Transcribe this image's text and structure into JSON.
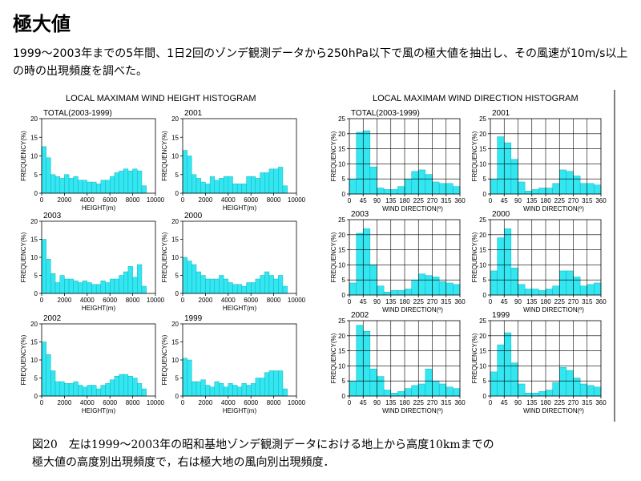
{
  "page": {
    "title": "極大値",
    "intro": "1999～2003年までの5年間、1日2回のゾンデ観測データから250hPa以下で風の極大値を抽出し、その風速が10m/s以上の時の出現頻度を調べた。",
    "caption_line1": "図20　左は1999～2003年の昭和基地ゾンデ観測データにおける地上から高度10kmまでの",
    "caption_line2": "極大値の高度別出現頻度で，右は極大地の風向別出現頻度．"
  },
  "figures": {
    "height_title": "LOCAL MAXIMAM WIND HEIGHT HISTOGRAM",
    "direction_title": "LOCAL MAXIMAM WIND DIRECTION HISTOGRAM"
  },
  "chart_data": [
    {
      "type": "bar",
      "group": "height",
      "title": "TOTAL(2003-1999)",
      "xlabel": "HEIGHT(m)",
      "ylabel": "FREQUENCY(%)",
      "xlim": [
        0,
        10000
      ],
      "ylim": [
        0,
        20
      ],
      "xticks": [
        0,
        2000,
        4000,
        6000,
        8000,
        10000
      ],
      "yticks": [
        0,
        5,
        10,
        15,
        20
      ],
      "bin_width": 400,
      "values": [
        12.5,
        9.5,
        5,
        4.5,
        4,
        5,
        4,
        4.5,
        3.5,
        3.5,
        3,
        3,
        2.5,
        3.5,
        3.5,
        4.5,
        5.5,
        6,
        6.5,
        6,
        6.5,
        6,
        2
      ]
    },
    {
      "type": "bar",
      "group": "height",
      "title": "2001",
      "xlabel": "HEIGHT(m)",
      "ylabel": "FREQUENCY(%)",
      "xlim": [
        0,
        10000
      ],
      "ylim": [
        0,
        20
      ],
      "xticks": [
        0,
        2000,
        4000,
        6000,
        8000,
        10000
      ],
      "yticks": [
        0,
        5,
        10,
        15,
        20
      ],
      "bin_width": 400,
      "values": [
        11.5,
        10,
        5,
        4,
        3,
        2.5,
        4.5,
        3.5,
        4,
        4.5,
        4.5,
        2.5,
        2.5,
        2.5,
        4.5,
        4.5,
        4,
        5.5,
        5.5,
        6.5,
        6.5,
        7,
        2
      ]
    },
    {
      "type": "bar",
      "group": "height",
      "title": "2003",
      "xlabel": "HEIGHT(m)",
      "ylabel": "FREQUENCY(%)",
      "xlim": [
        0,
        10000
      ],
      "ylim": [
        0,
        20
      ],
      "xticks": [
        0,
        2000,
        4000,
        6000,
        8000,
        10000
      ],
      "yticks": [
        0,
        5,
        10,
        15,
        20
      ],
      "bin_width": 400,
      "values": [
        15,
        9.5,
        5.5,
        3,
        5,
        4,
        4,
        3.5,
        3,
        3.5,
        3,
        2.5,
        2.5,
        3.5,
        3,
        4,
        4,
        5,
        6,
        7.5,
        4.5,
        8,
        2
      ]
    },
    {
      "type": "bar",
      "group": "height",
      "title": "2000",
      "xlabel": "HEIGHT(m)",
      "ylabel": "FREQUENCY(%)",
      "xlim": [
        0,
        10000
      ],
      "ylim": [
        0,
        20
      ],
      "xticks": [
        0,
        2000,
        4000,
        6000,
        8000,
        10000
      ],
      "yticks": [
        0,
        5,
        10,
        15,
        20
      ],
      "bin_width": 400,
      "values": [
        10,
        9,
        8,
        6,
        5,
        4,
        4,
        4,
        5,
        4,
        3,
        2.5,
        2.5,
        2,
        3,
        3,
        4,
        5,
        6,
        5,
        4,
        5,
        2
      ]
    },
    {
      "type": "bar",
      "group": "height",
      "title": "2002",
      "xlabel": "HEIGHT(m)",
      "ylabel": "FREQUENCY(%)",
      "xlim": [
        0,
        10000
      ],
      "ylim": [
        0,
        20
      ],
      "xticks": [
        0,
        2000,
        4000,
        6000,
        8000,
        10000
      ],
      "yticks": [
        0,
        5,
        10,
        15,
        20
      ],
      "bin_width": 400,
      "values": [
        15,
        11.5,
        7,
        4,
        4,
        3.5,
        3.5,
        4,
        3,
        2.5,
        3,
        3,
        2,
        3,
        3.5,
        4.5,
        5.5,
        6,
        6,
        5.5,
        5,
        3.5,
        2
      ]
    },
    {
      "type": "bar",
      "group": "height",
      "title": "1999",
      "xlabel": "HEIGHT(m)",
      "ylabel": "FREQUENCY(%)",
      "xlim": [
        0,
        10000
      ],
      "ylim": [
        0,
        20
      ],
      "xticks": [
        0,
        2000,
        4000,
        6000,
        8000,
        10000
      ],
      "yticks": [
        0,
        5,
        10,
        15,
        20
      ],
      "bin_width": 400,
      "values": [
        10.5,
        10,
        4,
        4,
        4.5,
        3,
        2.5,
        4,
        3.5,
        2.5,
        3.5,
        3,
        2.5,
        3.5,
        3,
        3.5,
        5,
        5,
        6.5,
        7,
        7,
        7,
        2
      ]
    },
    {
      "type": "bar",
      "group": "direction",
      "title": "TOTAL(2003-1999)",
      "xlabel": "WIND DIRECTION(º)",
      "ylabel": "FREQUENCY(%)",
      "xlim": [
        0,
        360
      ],
      "ylim": [
        0,
        25
      ],
      "xticks": [
        0,
        45,
        90,
        135,
        180,
        225,
        270,
        315,
        360
      ],
      "yticks": [
        0,
        5,
        10,
        15,
        20,
        25
      ],
      "bin_width": 22.5,
      "values": [
        5,
        20.5,
        21,
        9,
        2,
        1.5,
        1.5,
        2.5,
        5,
        7.5,
        8,
        6.5,
        4,
        3.5,
        3.5,
        2.5
      ]
    },
    {
      "type": "bar",
      "group": "direction",
      "title": "2001",
      "xlabel": "WIND DIRECTION(º)",
      "ylabel": "FREQUENCY(%)",
      "xlim": [
        0,
        360
      ],
      "ylim": [
        0,
        25
      ],
      "xticks": [
        0,
        45,
        90,
        135,
        180,
        225,
        270,
        315,
        360
      ],
      "yticks": [
        0,
        5,
        10,
        15,
        20,
        25
      ],
      "bin_width": 22.5,
      "values": [
        5,
        19,
        17,
        11.5,
        4,
        1,
        1.5,
        2,
        2,
        3.5,
        8,
        7.5,
        6,
        3.5,
        3.5,
        3
      ]
    },
    {
      "type": "bar",
      "group": "direction",
      "title": "2003",
      "xlabel": "WIND DIRECTION(º)",
      "ylabel": "FREQUENCY(%)",
      "xlim": [
        0,
        360
      ],
      "ylim": [
        0,
        25
      ],
      "xticks": [
        0,
        45,
        90,
        135,
        180,
        225,
        270,
        315,
        360
      ],
      "yticks": [
        0,
        5,
        10,
        15,
        20,
        25
      ],
      "bin_width": 22.5,
      "values": [
        4,
        20.5,
        22,
        10,
        3,
        1,
        1.5,
        1.5,
        2,
        5,
        7,
        6.5,
        6,
        4.5,
        4,
        3.5
      ]
    },
    {
      "type": "bar",
      "group": "direction",
      "title": "2000",
      "xlabel": "WIND DIRECTION(º)",
      "ylabel": "FREQUENCY(%)",
      "xlim": [
        0,
        360
      ],
      "ylim": [
        0,
        25
      ],
      "xticks": [
        0,
        45,
        90,
        135,
        180,
        225,
        270,
        315,
        360
      ],
      "yticks": [
        0,
        5,
        10,
        15,
        20,
        25
      ],
      "bin_width": 22.5,
      "values": [
        8,
        19,
        22,
        9,
        3.5,
        2,
        2,
        1.5,
        2,
        3,
        8,
        8,
        6,
        3,
        3.5,
        4
      ]
    },
    {
      "type": "bar",
      "group": "direction",
      "title": "2002",
      "xlabel": "WIND DIRECTION(º)",
      "ylabel": "FREQUENCY(%)",
      "xlim": [
        0,
        360
      ],
      "ylim": [
        0,
        25
      ],
      "xticks": [
        0,
        45,
        90,
        135,
        180,
        225,
        270,
        315,
        360
      ],
      "yticks": [
        0,
        5,
        10,
        15,
        20,
        25
      ],
      "bin_width": 22.5,
      "values": [
        5,
        23.5,
        21.5,
        9,
        6.5,
        2,
        1,
        1.5,
        2.5,
        3.5,
        4,
        9,
        5,
        4,
        3,
        2.5
      ]
    },
    {
      "type": "bar",
      "group": "direction",
      "title": "1999",
      "xlabel": "WIND DIRECTION(º)",
      "ylabel": "FREQUENCY(%)",
      "xlim": [
        0,
        360
      ],
      "ylim": [
        0,
        25
      ],
      "xticks": [
        0,
        45,
        90,
        135,
        180,
        225,
        270,
        315,
        360
      ],
      "yticks": [
        0,
        5,
        10,
        15,
        20,
        25
      ],
      "bin_width": 22.5,
      "values": [
        8,
        17,
        21,
        11,
        4,
        1,
        1,
        1.5,
        2,
        4.5,
        9.5,
        8.5,
        6,
        4,
        3.5,
        3
      ]
    }
  ]
}
